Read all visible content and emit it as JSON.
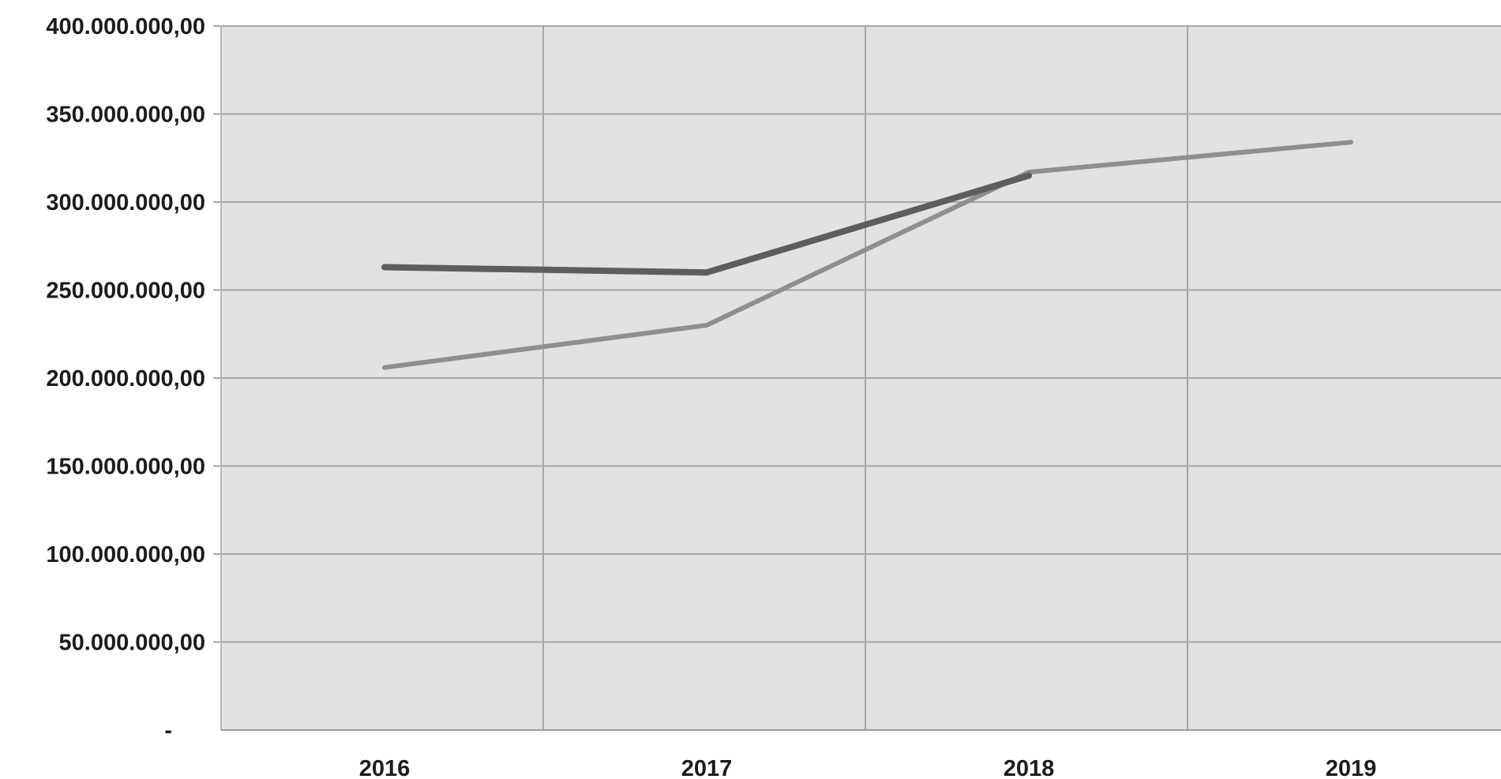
{
  "chart_data": {
    "type": "line",
    "title": "",
    "xlabel": "",
    "ylabel": "",
    "categories": [
      "2016",
      "2017",
      "2018",
      "2019"
    ],
    "y_tick_labels": [
      "-",
      "50.000.000,00",
      "100.000.000,00",
      "150.000.000,00",
      "200.000.000,00",
      "250.000.000,00",
      "300.000.000,00",
      "350.000.000,00",
      "400.000.000,00"
    ],
    "ylim": [
      0,
      400000000
    ],
    "y_tick_step": 50000000,
    "grid": true,
    "legend": "none",
    "colors": {
      "plot_background": "#e2e2e4",
      "gridline": "#a6a6a8",
      "axis_text": "#1c1c1c"
    },
    "series": [
      {
        "values": [
          206000000,
          230000000,
          317000000,
          334000000
        ],
        "color": "#8f8f91"
      },
      {
        "values": [
          263000000,
          260000000,
          315000000,
          null
        ],
        "color": "#5d5d5f"
      }
    ]
  }
}
